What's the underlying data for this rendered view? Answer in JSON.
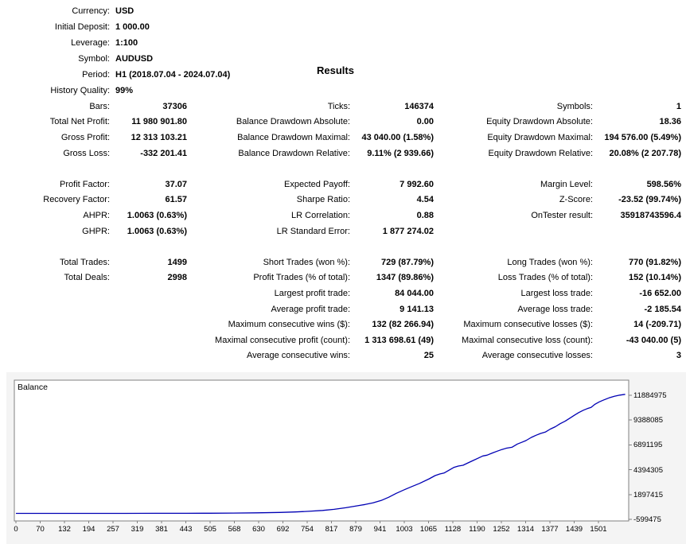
{
  "report": {
    "results_title": "Results",
    "info": {
      "rows": [
        {
          "label": "Currency:",
          "value": "USD"
        },
        {
          "label": "Initial Deposit:",
          "value": "1 000.00"
        },
        {
          "label": "Leverage:",
          "value": "1:100"
        },
        {
          "label": "Symbol:",
          "value": "AUDUSD"
        },
        {
          "label": "Period:",
          "value": "H1 (2018.07.04 - 2024.07.04)"
        },
        {
          "label": "History Quality:",
          "value": "99%"
        }
      ]
    },
    "stats": {
      "rows": [
        {
          "c1": {
            "l": "Bars:",
            "v": "37306"
          },
          "c2": {
            "l": "Ticks:",
            "v": "146374"
          },
          "c3": {
            "l": "Symbols:",
            "v": "1"
          }
        },
        {
          "c1": {
            "l": "Total Net Profit:",
            "v": "11 980 901.80"
          },
          "c2": {
            "l": "Balance Drawdown Absolute:",
            "v": "0.00"
          },
          "c3": {
            "l": "Equity Drawdown Absolute:",
            "v": "18.36"
          }
        },
        {
          "c1": {
            "l": "Gross Profit:",
            "v": "12 313 103.21"
          },
          "c2": {
            "l": "Balance Drawdown Maximal:",
            "v": "43 040.00 (1.58%)"
          },
          "c3": {
            "l": "Equity Drawdown Maximal:",
            "v": "194 576.00 (5.49%)"
          }
        },
        {
          "c1": {
            "l": "Gross Loss:",
            "v": "-332 201.41"
          },
          "c2": {
            "l": "Balance Drawdown Relative:",
            "v": "9.11% (2 939.66)"
          },
          "c3": {
            "l": "Equity Drawdown Relative:",
            "v": "20.08% (2 207.78)"
          }
        },
        {
          "c1": null,
          "c2": null,
          "c3": null
        },
        {
          "c1": {
            "l": "Profit Factor:",
            "v": "37.07"
          },
          "c2": {
            "l": "Expected Payoff:",
            "v": "7 992.60"
          },
          "c3": {
            "l": "Margin Level:",
            "v": "598.56%"
          }
        },
        {
          "c1": {
            "l": "Recovery Factor:",
            "v": "61.57"
          },
          "c2": {
            "l": "Sharpe Ratio:",
            "v": "4.54"
          },
          "c3": {
            "l": "Z-Score:",
            "v": "-23.52 (99.74%)"
          }
        },
        {
          "c1": {
            "l": "AHPR:",
            "v": "1.0063 (0.63%)"
          },
          "c2": {
            "l": "LR Correlation:",
            "v": "0.88"
          },
          "c3": {
            "l": "OnTester result:",
            "v": "35918743596.4"
          }
        },
        {
          "c1": {
            "l": "GHPR:",
            "v": "1.0063 (0.63%)"
          },
          "c2": {
            "l": "LR Standard Error:",
            "v": "1 877 274.02"
          },
          "c3": null
        },
        {
          "c1": null,
          "c2": null,
          "c3": null
        },
        {
          "c1": {
            "l": "Total Trades:",
            "v": "1499"
          },
          "c2": {
            "l": "Short Trades (won %):",
            "v": "729 (87.79%)"
          },
          "c3": {
            "l": "Long Trades (won %):",
            "v": "770 (91.82%)"
          }
        },
        {
          "c1": {
            "l": "Total Deals:",
            "v": "2998"
          },
          "c2": {
            "l": "Profit Trades (% of total):",
            "v": "1347 (89.86%)"
          },
          "c3": {
            "l": "Loss Trades (% of total):",
            "v": "152 (10.14%)"
          }
        },
        {
          "c1": null,
          "c2": {
            "l": "Largest profit trade:",
            "v": "84 044.00"
          },
          "c3": {
            "l": "Largest loss trade:",
            "v": "-16 652.00"
          }
        },
        {
          "c1": null,
          "c2": {
            "l": "Average profit trade:",
            "v": "9 141.13"
          },
          "c3": {
            "l": "Average loss trade:",
            "v": "-2 185.54"
          }
        },
        {
          "c1": null,
          "c2": {
            "l": "Maximum consecutive wins ($):",
            "v": "132 (82 266.94)"
          },
          "c3": {
            "l": "Maximum consecutive losses ($):",
            "v": "14 (-209.71)"
          }
        },
        {
          "c1": null,
          "c2": {
            "l": "Maximal consecutive profit (count):",
            "v": "1 313 698.61 (49)"
          },
          "c3": {
            "l": "Maximal consecutive loss (count):",
            "v": "-43 040.00 (5)"
          }
        },
        {
          "c1": null,
          "c2": {
            "l": "Average consecutive wins:",
            "v": "25"
          },
          "c3": {
            "l": "Average consecutive losses:",
            "v": "3"
          }
        }
      ]
    }
  },
  "colors": {
    "text": "#000000",
    "line": "#0000b4",
    "chart_border": "#808080",
    "chart_bg": "#ffffff",
    "panel_bg": "#f4f4f4"
  },
  "chart_data": {
    "type": "line",
    "title": "Balance",
    "line_color": "#0000b4",
    "legend_position": "top-left",
    "grid": false,
    "x_axis_max": 1501,
    "ylim": [
      -599475,
      11884975
    ],
    "x_tick_labels": [
      "0",
      "70",
      "132",
      "194",
      "257",
      "319",
      "381",
      "443",
      "505",
      "568",
      "630",
      "692",
      "754",
      "817",
      "879",
      "941",
      "1003",
      "1065",
      "1128",
      "1190",
      "1252",
      "1314",
      "1377",
      "1439",
      "1501"
    ],
    "y_tick_labels": [
      "11884975",
      "9388085",
      "6891195",
      "4394305",
      "1897415",
      "-599475"
    ],
    "y_ticks": [
      11884975,
      9388085,
      6891195,
      4394305,
      1897415,
      -599475
    ],
    "series": [
      {
        "name": "Balance"
      }
    ],
    "points": [
      [
        0,
        1000
      ],
      [
        60,
        1200
      ],
      [
        120,
        1600
      ],
      [
        200,
        2500
      ],
      [
        280,
        4200
      ],
      [
        360,
        7000
      ],
      [
        440,
        12000
      ],
      [
        500,
        20000
      ],
      [
        560,
        33000
      ],
      [
        620,
        55000
      ],
      [
        680,
        95000
      ],
      [
        720,
        145000
      ],
      [
        754,
        205000
      ],
      [
        790,
        300000
      ],
      [
        820,
        410000
      ],
      [
        850,
        570000
      ],
      [
        879,
        760000
      ],
      [
        900,
        900000
      ],
      [
        920,
        1060000
      ],
      [
        941,
        1300000
      ],
      [
        960,
        1620000
      ],
      [
        980,
        2020000
      ],
      [
        1003,
        2420000
      ],
      [
        1020,
        2700000
      ],
      [
        1040,
        3020000
      ],
      [
        1065,
        3480000
      ],
      [
        1080,
        3800000
      ],
      [
        1092,
        3960000
      ],
      [
        1103,
        4060000
      ],
      [
        1115,
        4330000
      ],
      [
        1128,
        4620000
      ],
      [
        1140,
        4760000
      ],
      [
        1152,
        4840000
      ],
      [
        1165,
        5080000
      ],
      [
        1178,
        5320000
      ],
      [
        1190,
        5540000
      ],
      [
        1203,
        5780000
      ],
      [
        1214,
        5860000
      ],
      [
        1228,
        6080000
      ],
      [
        1240,
        6260000
      ],
      [
        1252,
        6430000
      ],
      [
        1264,
        6560000
      ],
      [
        1278,
        6650000
      ],
      [
        1292,
        6980000
      ],
      [
        1305,
        7180000
      ],
      [
        1314,
        7320000
      ],
      [
        1328,
        7640000
      ],
      [
        1340,
        7860000
      ],
      [
        1352,
        8040000
      ],
      [
        1364,
        8180000
      ],
      [
        1377,
        8480000
      ],
      [
        1390,
        8720000
      ],
      [
        1402,
        9020000
      ],
      [
        1415,
        9280000
      ],
      [
        1428,
        9600000
      ],
      [
        1439,
        9880000
      ],
      [
        1450,
        10140000
      ],
      [
        1462,
        10380000
      ],
      [
        1472,
        10540000
      ],
      [
        1482,
        10660000
      ],
      [
        1492,
        10980000
      ],
      [
        1503,
        11220000
      ],
      [
        1515,
        11420000
      ],
      [
        1528,
        11620000
      ],
      [
        1542,
        11780000
      ],
      [
        1556,
        11900000
      ],
      [
        1570,
        11980902
      ]
    ]
  }
}
